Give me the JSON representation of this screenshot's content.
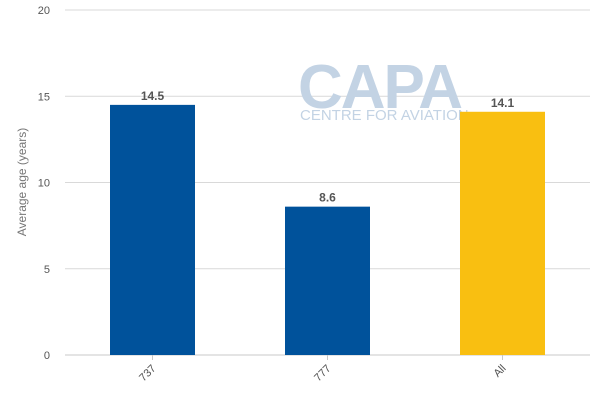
{
  "chart_data": {
    "type": "bar",
    "title": "",
    "xlabel": "",
    "ylabel": "Average age (years)",
    "categories": [
      "737",
      "777",
      "All"
    ],
    "values": [
      14.5,
      8.6,
      14.1
    ],
    "data_labels": [
      "14.5",
      "8.6",
      "14.1"
    ],
    "bar_colors": [
      "#00529b",
      "#00529b",
      "#f9bf11"
    ],
    "ylim": [
      0,
      20
    ],
    "yticks": [
      0,
      5,
      10,
      15,
      20
    ],
    "grid": true,
    "legend": "none"
  },
  "watermark": {
    "brand": "CAPA",
    "tagline": "CENTRE FOR AVIATION",
    "color": "#c3d3e4"
  }
}
